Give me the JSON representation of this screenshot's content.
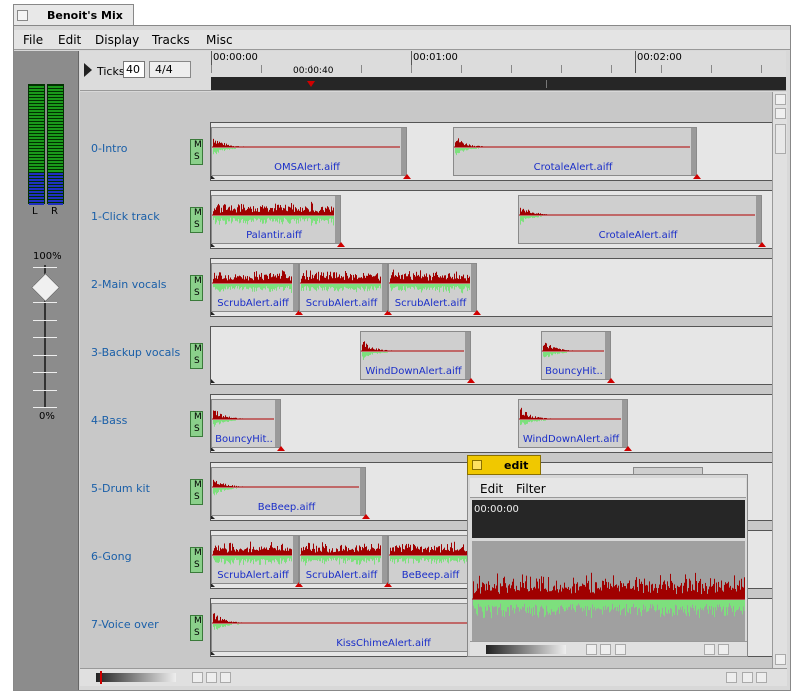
{
  "window": {
    "title": "Benoit's Mix"
  },
  "menu": [
    "File",
    "Edit",
    "Display",
    "Tracks",
    "Misc"
  ],
  "toolbar": {
    "ticks_label": "Ticks:",
    "ticks": "40",
    "meter": "4/4"
  },
  "timeline": {
    "marks": [
      "00:00:00",
      "00:01:00",
      "00:02:00"
    ],
    "cursor": "00:00:40"
  },
  "meters": {
    "left": "L",
    "right": "R"
  },
  "volume": {
    "max": "100%",
    "min": "0%"
  },
  "tracks": [
    {
      "name": "0-Intro",
      "mute": "M",
      "solo": "S",
      "clips": [
        "OMSAlert.aiff",
        "CrotaleAlert.aiff"
      ]
    },
    {
      "name": "1-Click track",
      "mute": "M",
      "solo": "S",
      "clips": [
        "Palantir.aiff",
        "CrotaleAlert.aiff"
      ]
    },
    {
      "name": "2-Main vocals",
      "mute": "M",
      "solo": "S",
      "clips": [
        "ScrubAlert.aiff",
        "ScrubAlert.aiff",
        "ScrubAlert.aiff"
      ]
    },
    {
      "name": "3-Backup vocals",
      "mute": "M",
      "solo": "S",
      "clips": [
        "WindDownAlert.aiff",
        "BouncyHit.."
      ]
    },
    {
      "name": "4-Bass",
      "mute": "M",
      "solo": "S",
      "clips": [
        "BouncyHit..",
        "WindDownAlert.aiff"
      ]
    },
    {
      "name": "5-Drum kit",
      "mute": "M",
      "solo": "S",
      "clips": [
        "BeBeep.aiff"
      ]
    },
    {
      "name": "6-Gong",
      "mute": "M",
      "solo": "S",
      "clips": [
        "ScrubAlert.aiff",
        "ScrubAlert.aiff",
        "BeBeep.aiff"
      ]
    },
    {
      "name": "7-Voice over",
      "mute": "M",
      "solo": "S",
      "clips": [
        "KissChimeAlert.aiff"
      ]
    }
  ],
  "edit_window": {
    "title": "edit",
    "menu": [
      "Edit",
      "Filter"
    ],
    "time": "00:00:00"
  }
}
